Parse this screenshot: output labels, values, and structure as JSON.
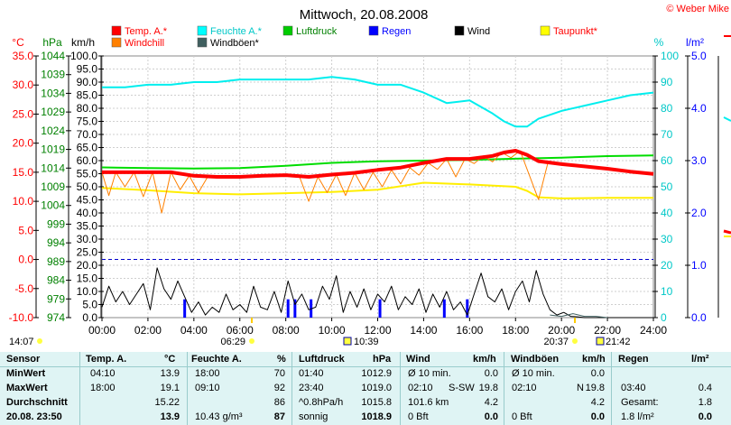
{
  "header": {
    "title": "Mittwoch, 20.08.2008",
    "credit": "© Weber Mike"
  },
  "axis_units": {
    "temp": "°C",
    "pressure": "hPa",
    "speed": "km/h",
    "humidity": "%",
    "rain": "l/m²"
  },
  "legend": [
    {
      "label": "Temp. A.*",
      "color": "#ff0000",
      "text_color": "#ff0000"
    },
    {
      "label": "Feuchte A.*",
      "color": "#00ffff",
      "text_color": "#00c8c8"
    },
    {
      "label": "Luftdruck",
      "color": "#00cc00",
      "text_color": "#008000"
    },
    {
      "label": "Regen",
      "color": "#0000ff",
      "text_color": "#0000ff"
    },
    {
      "label": "Wind",
      "color": "#000000",
      "text_color": "#000000"
    },
    {
      "label": "Taupunkt*",
      "color": "#ffff00",
      "text_color": "#ff0000"
    },
    {
      "label": "Windchill",
      "color": "#ff8000",
      "text_color": "#ff0000"
    },
    {
      "label": "Windböen*",
      "color": "#406060",
      "text_color": "#000000"
    }
  ],
  "sun_markers": {
    "sunrise": "06:29",
    "sunset": "20:37",
    "moonrise": "10:39",
    "moonset": "21:42",
    "left_time": "14:07"
  },
  "chart_data": {
    "type": "line",
    "x_label_times": [
      "00:00",
      "02:00",
      "04:00",
      "06:00",
      "08:00",
      "10:00",
      "12:00",
      "14:00",
      "16:00",
      "18:00",
      "20:00",
      "22:00",
      "24:00"
    ],
    "axes": {
      "temp": {
        "ticks": [
          "35.0",
          "30.0",
          "25.0",
          "20.0",
          "15.0",
          "10.0",
          "5.0",
          "0.0",
          "-5.0",
          "-10.0"
        ],
        "range": [
          -10,
          35
        ]
      },
      "pressure": {
        "ticks": [
          "1044",
          "1039",
          "1034",
          "1029",
          "1024",
          "1019",
          "1014",
          "1009",
          "1004",
          "999",
          "994",
          "989",
          "984",
          "979",
          "974"
        ],
        "range": [
          974,
          1044
        ]
      },
      "speed": {
        "ticks": [
          "100.0",
          "95.0",
          "90.0",
          "85.0",
          "80.0",
          "75.0",
          "70.0",
          "65.0",
          "60.0",
          "55.0",
          "50.0",
          "45.0",
          "40.0",
          "35.0",
          "30.0",
          "25.0",
          "20.0",
          "15.0",
          "10.0",
          "5.0",
          "0.0"
        ],
        "range": [
          0,
          100
        ]
      },
      "humidity": {
        "ticks": [
          "100",
          "90",
          "80",
          "70",
          "60",
          "50",
          "40",
          "30",
          "20",
          "10",
          "0"
        ],
        "range": [
          0,
          100
        ]
      },
      "rain": {
        "ticks": [
          "5.0",
          "4.0",
          "3.0",
          "2.0",
          "1.0",
          "0.0"
        ],
        "range": [
          0,
          5
        ]
      }
    },
    "series": [
      {
        "name": "Temp. A.*",
        "axis": "temp",
        "color": "#ff0000",
        "width": 4,
        "x": [
          0,
          1,
          2,
          3,
          4,
          5,
          6,
          7,
          8,
          9,
          10,
          11,
          12,
          13,
          14,
          15,
          16,
          17,
          17.5,
          18,
          18.5,
          19,
          20,
          21,
          22,
          23,
          24
        ],
        "y": [
          15.0,
          15.0,
          15.0,
          15.0,
          14.4,
          14.2,
          14.2,
          14.4,
          14.5,
          14.2,
          14.6,
          14.9,
          15.4,
          15.8,
          16.6,
          17.3,
          17.3,
          17.8,
          18.4,
          18.7,
          18.0,
          16.9,
          16.4,
          16.0,
          15.6,
          15.1,
          14.7
        ]
      },
      {
        "name": "Feuchte A.*",
        "axis": "humidity",
        "color": "#00eeee",
        "width": 2,
        "x": [
          0,
          1,
          2,
          3,
          4,
          5,
          6,
          7,
          8,
          9,
          10,
          11,
          12,
          13,
          14,
          15,
          16,
          17,
          17.5,
          18,
          18.5,
          19,
          20,
          21,
          22,
          23,
          24
        ],
        "y": [
          88,
          88,
          89,
          89,
          90,
          90,
          91,
          91,
          91,
          91,
          92,
          91,
          89,
          89,
          86,
          82,
          83,
          78,
          75,
          73,
          73,
          76,
          79,
          81,
          83,
          85,
          86
        ]
      },
      {
        "name": "Luftdruck",
        "axis": "pressure",
        "color": "#00dd00",
        "width": 2,
        "x": [
          0,
          2,
          4,
          6,
          8,
          10,
          12,
          14,
          16,
          18,
          20,
          22,
          24
        ],
        "y": [
          1014.2,
          1014.0,
          1013.9,
          1014.0,
          1014.6,
          1015.4,
          1015.8,
          1016.0,
          1016.2,
          1016.5,
          1016.8,
          1017.2,
          1017.4
        ]
      },
      {
        "name": "Taupunkt*",
        "axis": "temp",
        "color": "#ffee00",
        "width": 2,
        "x": [
          0,
          2,
          4,
          6,
          8,
          10,
          12,
          14,
          16,
          18,
          18.5,
          19,
          20,
          22,
          24
        ],
        "y": [
          12.3,
          11.9,
          11.4,
          11.2,
          11.4,
          11.6,
          12.0,
          13.2,
          12.9,
          12.5,
          11.8,
          10.7,
          10.5,
          10.6,
          10.6
        ]
      },
      {
        "name": "Windchill",
        "axis": "temp",
        "color": "#ff8000",
        "width": 1,
        "x": [
          0,
          0.3,
          0.6,
          1,
          1.4,
          1.8,
          2.2,
          2.6,
          3,
          3.4,
          3.8,
          4.2,
          4.6,
          5,
          6,
          7,
          8,
          8.6,
          9,
          9.4,
          9.8,
          10.2,
          10.6,
          11,
          11.4,
          11.8,
          12.2,
          12.6,
          13,
          13.4,
          13.8,
          14.2,
          14.6,
          15,
          15.4,
          15.8,
          16.2,
          16.6,
          17,
          17.4,
          17.8,
          18.2,
          18.6,
          19,
          19.4,
          20,
          21,
          22,
          23,
          24
        ],
        "y": [
          15,
          11.0,
          15,
          12.5,
          15,
          10.8,
          15,
          8.0,
          15,
          12.0,
          14.4,
          11.5,
          14.2,
          14.2,
          14.2,
          14.4,
          14.5,
          14.2,
          10.0,
          14.2,
          11.5,
          14.6,
          11.0,
          14.9,
          12.0,
          15.0,
          12.5,
          15.4,
          13.0,
          15.8,
          14.5,
          16.6,
          15.5,
          17.3,
          14.2,
          17.3,
          16.5,
          17.8,
          16.8,
          18.4,
          17.5,
          18.7,
          14.5,
          10.3,
          16.5,
          16.4,
          16.0,
          15.6,
          15.1,
          14.7
        ]
      },
      {
        "name": "Wind",
        "axis": "speed",
        "color": "#000000",
        "width": 1,
        "x": [
          0,
          0.3,
          0.6,
          0.9,
          1.2,
          1.5,
          1.8,
          2.1,
          2.4,
          2.7,
          3.0,
          3.3,
          3.6,
          3.9,
          4.2,
          4.5,
          4.8,
          5.1,
          5.4,
          5.7,
          6.0,
          6.3,
          6.6,
          6.9,
          7.2,
          7.5,
          7.8,
          8.1,
          8.4,
          8.7,
          9.0,
          9.3,
          9.6,
          9.9,
          10.2,
          10.5,
          10.8,
          11.1,
          11.4,
          11.7,
          12.0,
          12.3,
          12.6,
          12.9,
          13.2,
          13.5,
          13.8,
          14.1,
          14.4,
          14.7,
          15.0,
          15.3,
          15.6,
          15.9,
          16.2,
          16.5,
          16.8,
          17.1,
          17.4,
          17.7,
          18.0,
          18.3,
          18.6,
          18.9,
          19.2,
          19.5,
          19.8,
          20.1,
          20.4,
          20.7,
          21.0,
          24
        ],
        "y": [
          4,
          12,
          6,
          10,
          5,
          9,
          13,
          3,
          19,
          11,
          7,
          14,
          8,
          2,
          6,
          1,
          4,
          2,
          9,
          3,
          5,
          2,
          12,
          4,
          3,
          10,
          2,
          14,
          5,
          9,
          3,
          4,
          12,
          7,
          16,
          2,
          10,
          4,
          11,
          3,
          9,
          6,
          12,
          3,
          8,
          5,
          11,
          2,
          9,
          4,
          10,
          3,
          6,
          1,
          9,
          17,
          8,
          6,
          11,
          3,
          10,
          14,
          6,
          18,
          9,
          3,
          1,
          2,
          0.5,
          0.3,
          0,
          0
        ]
      },
      {
        "name": "Windböen*",
        "axis": "speed",
        "color": "#406060",
        "width": 1,
        "x": [
          19.5,
          20.0,
          20.5,
          21.0,
          21.5,
          22.0
        ],
        "y": [
          1,
          0.5,
          1.5,
          0.5,
          0.5,
          0
        ]
      },
      {
        "name": "Regen",
        "axis": "rain",
        "color": "#0000ff",
        "type": "bars",
        "x": [
          3.6,
          8.1,
          8.4,
          9.1,
          12.1,
          14.9,
          15.9
        ],
        "y": [
          0.35,
          0.35,
          0.35,
          0.35,
          0.35,
          0.35,
          0.35
        ]
      }
    ]
  },
  "table": {
    "headers": {
      "sensor": "Sensor",
      "temp": "Temp. A.",
      "temp_unit": "°C",
      "hum": "Feuchte A.",
      "hum_unit": "%",
      "press": "Luftdruck",
      "press_unit": "hPa",
      "wind": "Wind",
      "wind_unit": "km/h",
      "gust": "Windböen",
      "gust_unit": "km/h",
      "rain": "Regen",
      "rain_unit": "l/m²"
    },
    "row_labels": [
      "MinWert",
      "MaxWert",
      "Durchschnitt",
      "20.08. 23:50"
    ],
    "temp": [
      [
        "04:10",
        "13.9"
      ],
      [
        "18:00",
        "19.1"
      ],
      [
        "",
        "15.22"
      ],
      [
        "",
        "13.9"
      ]
    ],
    "hum": [
      [
        "18:00",
        "70"
      ],
      [
        "09:10",
        "92"
      ],
      [
        "",
        "86"
      ],
      [
        "10.43 g/m³",
        "87"
      ]
    ],
    "press": [
      [
        "01:40",
        "1012.9"
      ],
      [
        "23:40",
        "1019.0"
      ],
      [
        "^0.8hPa/h",
        "1015.8"
      ],
      [
        "sonnig",
        "1018.9"
      ]
    ],
    "wind": [
      [
        "Ø 10 min.",
        "",
        "0.0"
      ],
      [
        "02:10",
        "S-SW",
        "19.8"
      ],
      [
        "101.6 km",
        "",
        "4.2"
      ],
      [
        "0 Bft",
        "",
        "0.0"
      ]
    ],
    "gust": [
      [
        "Ø 10 min.",
        "",
        "0.0"
      ],
      [
        "02:10",
        "N",
        "19.8"
      ],
      [
        "",
        "",
        "4.2"
      ],
      [
        "0 Bft",
        "",
        "0.0"
      ]
    ],
    "rain": [
      [
        "",
        ""
      ],
      [
        "03:40",
        "0.4"
      ],
      [
        "Gesamt:",
        "1.8"
      ],
      [
        "1.8 l/m²",
        "0.0"
      ]
    ]
  }
}
